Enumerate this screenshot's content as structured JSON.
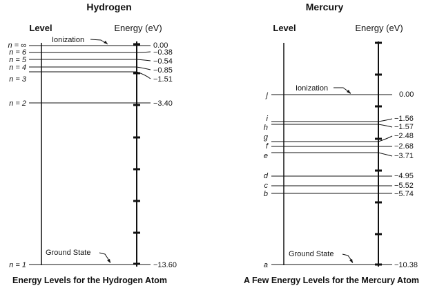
{
  "hydrogen": {
    "title": "Hydrogen",
    "level_header": "Level",
    "energy_header": "Energy (eV)",
    "ionization_label": "Ionization",
    "ground_state_label": "Ground State",
    "caption": "Energy Levels for the Hydrogen Atom",
    "levels": [
      {
        "name": "n = ∞",
        "energy": "0.00"
      },
      {
        "name": "n = 6",
        "energy": "−0.38"
      },
      {
        "name": "n = 5",
        "energy": "−0.54"
      },
      {
        "name": "n = 4",
        "energy": "−0.85"
      },
      {
        "name": "n = 3",
        "energy": "−1.51"
      },
      {
        "name": "n = 2",
        "energy": "−3.40"
      },
      {
        "name": "n = 1",
        "energy": "−13.60"
      }
    ]
  },
  "mercury": {
    "title": "Mercury",
    "level_header": "Level",
    "energy_header": "Energy (eV)",
    "ionization_label": "Ionization",
    "ground_state_label": "Ground State",
    "caption": "A Few Energy Levels for the Mercury Atom",
    "levels": [
      {
        "name": "j",
        "energy": "0.00"
      },
      {
        "name": "i",
        "energy": "−1.56"
      },
      {
        "name": "h",
        "energy": "−1.57"
      },
      {
        "name": "g",
        "energy": "−2.48"
      },
      {
        "name": "f",
        "energy": "−2.68"
      },
      {
        "name": "e",
        "energy": "−3.71"
      },
      {
        "name": "d",
        "energy": "−4.95"
      },
      {
        "name": "c",
        "energy": "−5.52"
      },
      {
        "name": "b",
        "energy": "−5.74"
      },
      {
        "name": "a",
        "energy": "−10.38"
      }
    ]
  }
}
